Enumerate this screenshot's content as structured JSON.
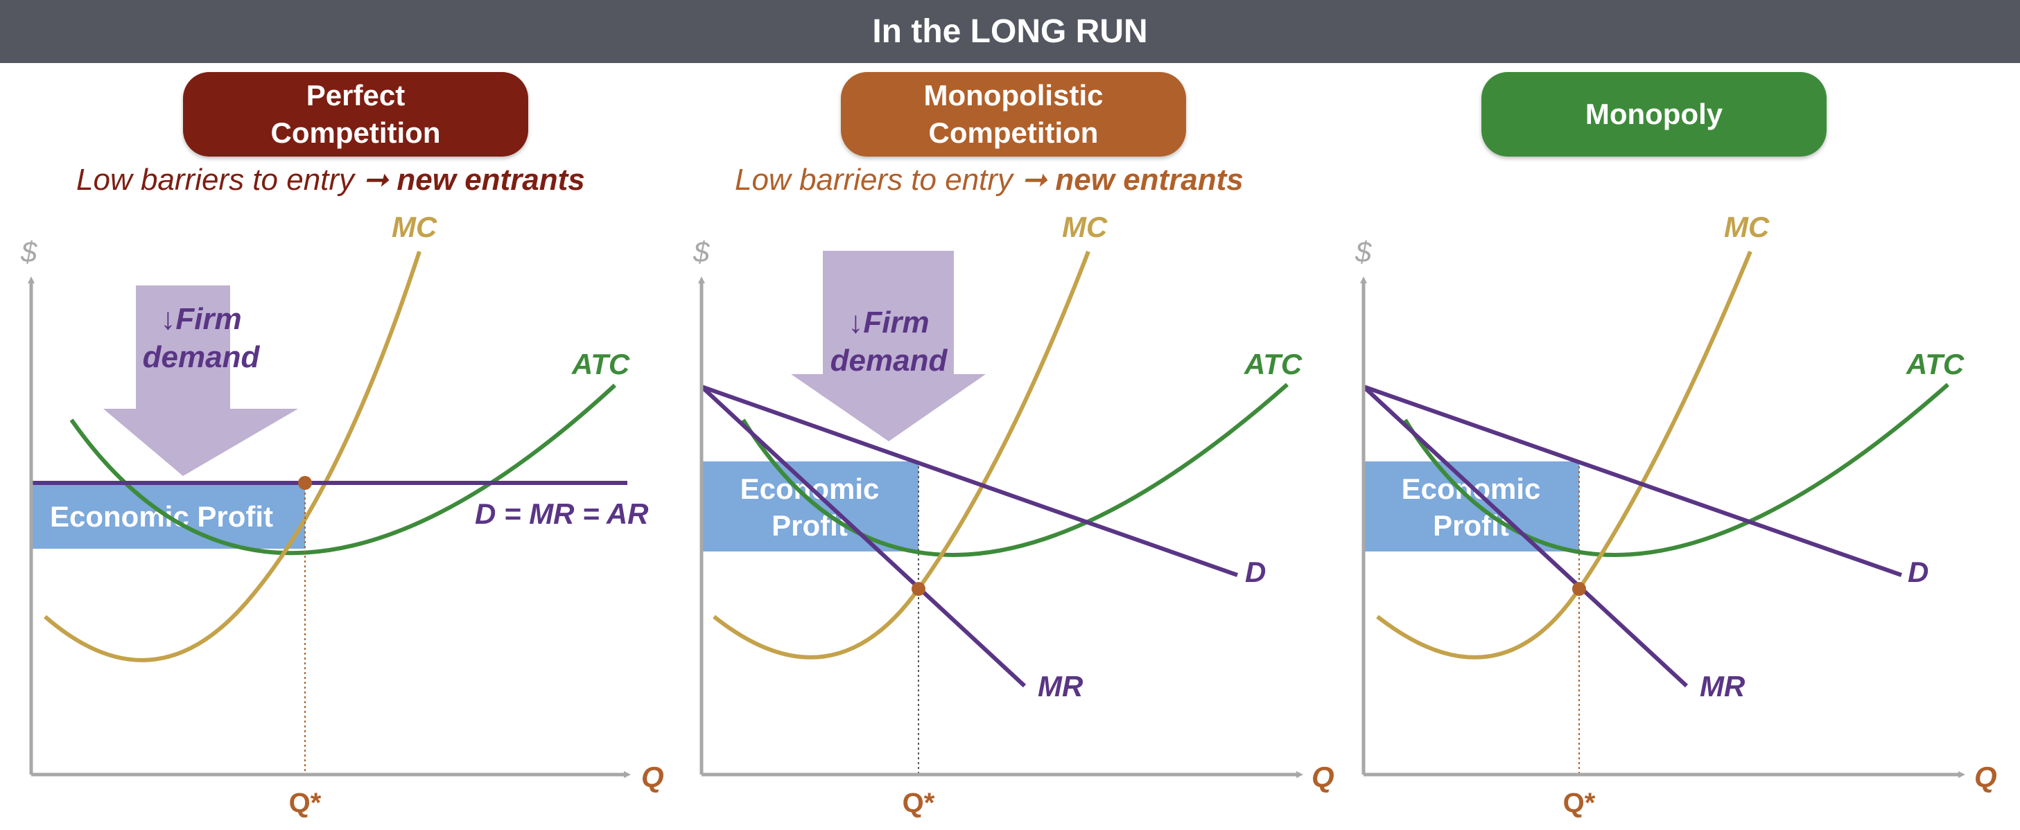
{
  "header": {
    "title": "In the LONG RUN"
  },
  "colors": {
    "header_bg": "#545760",
    "perfect": "#7D1E12",
    "monopolistic": "#B0602A",
    "monopoly": "#3D8B3A",
    "mc": "#C4A24A",
    "atc": "#3D8B3A",
    "demand": "#5A3585",
    "profit_box": "#7DA9DB",
    "arrow_fill": "#BFB1D2",
    "axis": "#A8A8A8",
    "q_label": "#B0602A",
    "dollar": "#A8A8A8"
  },
  "panels": [
    {
      "id": "perfect-competition",
      "title_line1": "Perfect",
      "title_line2": "Competition",
      "barriers_text": "Low barriers to entry ",
      "barriers_arrow": "➞",
      "barriers_strong": "new entrants",
      "has_arrow": true,
      "arrow_line1": "↓Firm",
      "arrow_line2": "demand",
      "profit_line1": "Economic Profit",
      "profit_line2": "",
      "demand_label": "D = MR = AR",
      "mr_label": "",
      "mc_label": "MC",
      "atc_label": "ATC",
      "dollar_label": "$",
      "x_label": "Q",
      "q_star_label": "Q*"
    },
    {
      "id": "monopolistic-competition",
      "title_line1": "Monopolistic",
      "title_line2": "Competition",
      "barriers_text": "Low barriers to entry ",
      "barriers_arrow": "➞",
      "barriers_strong": "new entrants",
      "has_arrow": true,
      "arrow_line1": "↓Firm",
      "arrow_line2": "demand",
      "profit_line1": "Economic",
      "profit_line2": "Profit",
      "demand_label": "D",
      "mr_label": "MR",
      "mc_label": "MC",
      "atc_label": "ATC",
      "dollar_label": "$",
      "x_label": "Q",
      "q_star_label": "Q*"
    },
    {
      "id": "monopoly",
      "title_line1": "Monopoly",
      "title_line2": "",
      "barriers_text": "",
      "barriers_arrow": "",
      "barriers_strong": "",
      "has_arrow": false,
      "arrow_line1": "",
      "arrow_line2": "",
      "profit_line1": "Economic",
      "profit_line2": "Profit",
      "demand_label": "D",
      "mr_label": "MR",
      "mc_label": "MC",
      "atc_label": "ATC",
      "dollar_label": "$",
      "x_label": "Q",
      "q_star_label": "Q*"
    }
  ]
}
